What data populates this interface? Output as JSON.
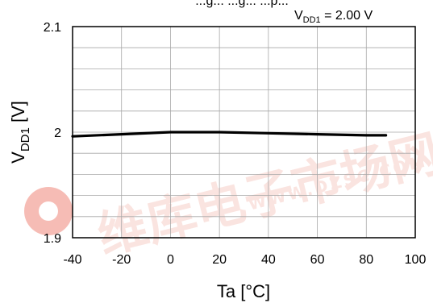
{
  "chart_data": {
    "type": "line",
    "title": "...g... ...g... ...p...",
    "condition": {
      "prefix": "V",
      "sub": "DD1",
      "suffix": " = 2.00 V"
    },
    "xlabel": "Ta [°C]",
    "ylabel": {
      "main": "V",
      "sub": "DD1",
      "unit": " [V]"
    },
    "xlim": [
      -40,
      100
    ],
    "ylim": [
      1.9,
      2.1
    ],
    "x_ticks": [
      "-40",
      "-20",
      "0",
      "20",
      "40",
      "60",
      "80",
      "100"
    ],
    "y_ticks": [
      "1.9",
      "2",
      "2.1"
    ],
    "x_tick_values": [
      -40,
      -20,
      0,
      20,
      40,
      60,
      80,
      100
    ],
    "y_tick_values": [
      1.9,
      2.0,
      2.1
    ],
    "grid": true,
    "series": [
      {
        "x": [
          -40,
          -20,
          0,
          20,
          40,
          60,
          80,
          88
        ],
        "y": [
          1.996,
          1.998,
          2.0,
          2.0,
          1.999,
          1.998,
          1.997,
          1.997
        ],
        "color": "#000000"
      }
    ]
  },
  "watermark": {
    "text_cn": "维库电子市场网",
    "text_url": "WWW.DZSC.COM",
    "color": "#e8432e"
  }
}
